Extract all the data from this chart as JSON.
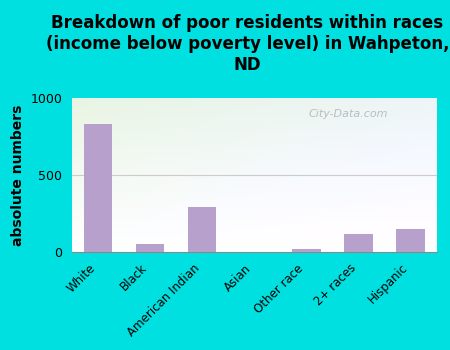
{
  "categories": [
    "White",
    "Black",
    "American Indian",
    "Asian",
    "Other race",
    "2+ races",
    "Hispanic"
  ],
  "values": [
    830,
    55,
    290,
    0,
    20,
    120,
    150
  ],
  "bar_color": "#b8a0cc",
  "title": "Breakdown of poor residents within races\n(income below poverty level) in Wahpeton,\nND",
  "ylabel": "absolute numbers",
  "ylim": [
    0,
    1000
  ],
  "yticks": [
    0,
    500,
    1000
  ],
  "background_color": "#00e0e0",
  "plot_bg_color": "#e8f5e2",
  "watermark": "City-Data.com",
  "title_fontsize": 12,
  "ylabel_fontsize": 10,
  "hline_color": "#cccccc",
  "hline_y": 500
}
